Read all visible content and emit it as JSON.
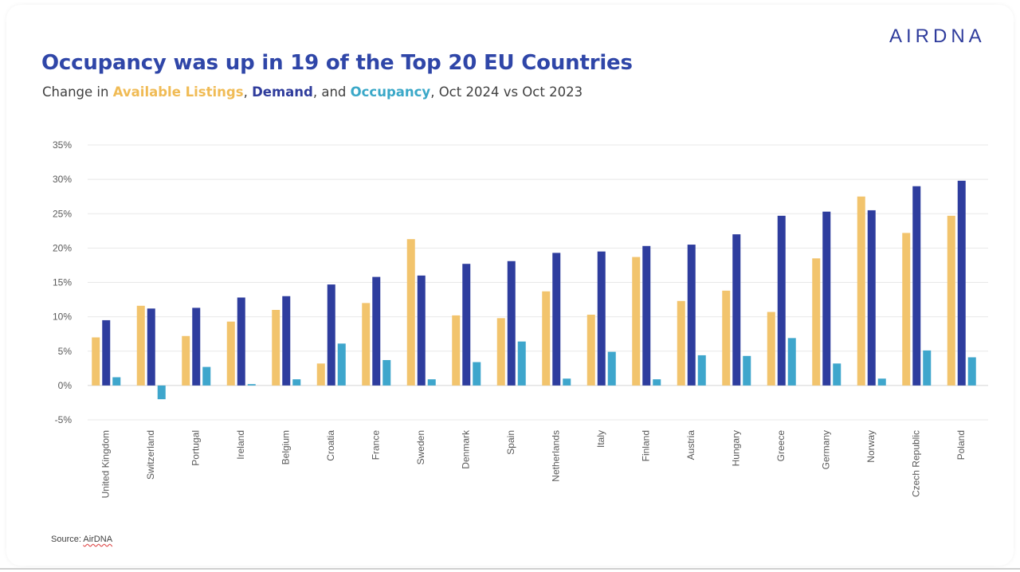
{
  "brand": {
    "logo_text": "AIRDNA"
  },
  "header": {
    "title": "Occupancy was up in 19 of the Top 20 EU Countries",
    "subtitle_prefix": "Change in ",
    "subtitle_listings": "Available Listings",
    "subtitle_sep1": ", ",
    "subtitle_demand": "Demand",
    "subtitle_sep2": ", and ",
    "subtitle_occupancy": "Occupancy",
    "subtitle_suffix": ", Oct 2024 vs Oct 2023"
  },
  "footer": {
    "source_label": "Source: ",
    "source_name": "AirDNA"
  },
  "chart_data": {
    "type": "bar",
    "title": "Occupancy was up in 19 of the Top 20 EU Countries",
    "xlabel": "",
    "ylabel": "",
    "ylim": [
      -5,
      35
    ],
    "yticks": [
      -5,
      0,
      5,
      10,
      15,
      20,
      25,
      30,
      35
    ],
    "ytick_labels": [
      "-5%",
      "0%",
      "5%",
      "10%",
      "15%",
      "20%",
      "25%",
      "30%",
      "35%"
    ],
    "grid": true,
    "legend": "none",
    "categories": [
      "United Kingdom",
      "Switzerland",
      "Portugal",
      "Ireland",
      "Belgium",
      "Croatia",
      "France",
      "Sweden",
      "Denmark",
      "Spain",
      "Netherlands",
      "Italy",
      "Finland",
      "Austria",
      "Hungary",
      "Greece",
      "Germany",
      "Norway",
      "Czech Republic",
      "Poland"
    ],
    "series": [
      {
        "name": "Available Listings",
        "color": "#f2c46d",
        "values": [
          7.0,
          11.6,
          7.2,
          9.3,
          11.0,
          3.2,
          12.0,
          21.3,
          10.2,
          9.8,
          13.7,
          10.3,
          18.7,
          12.3,
          13.8,
          10.7,
          18.5,
          27.5,
          22.2,
          24.7
        ]
      },
      {
        "name": "Demand",
        "color": "#2e3d9e",
        "values": [
          9.5,
          11.2,
          11.3,
          12.8,
          13.0,
          14.7,
          15.8,
          16.0,
          17.7,
          18.1,
          19.3,
          19.5,
          20.3,
          20.5,
          22.0,
          24.7,
          25.3,
          25.5,
          29.0,
          29.8
        ]
      },
      {
        "name": "Occupancy",
        "color": "#3ea6cc",
        "values": [
          1.2,
          -2.0,
          2.7,
          0.2,
          0.9,
          6.1,
          3.7,
          0.9,
          3.4,
          6.4,
          1.0,
          4.9,
          0.9,
          4.4,
          4.3,
          6.9,
          3.2,
          1.0,
          5.1,
          4.1
        ]
      }
    ]
  }
}
